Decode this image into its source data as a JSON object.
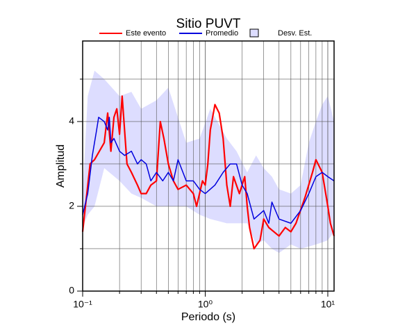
{
  "chart_data": {
    "type": "line",
    "title": "Sitio PUVT",
    "x_label": "Periodo (s)",
    "y_label": "Amplitud",
    "xlog": true,
    "grid": true,
    "xlim": [
      0.1,
      11.25
    ],
    "ylim": [
      0,
      5.9
    ],
    "xticks": [
      {
        "value": 0.1,
        "label": "10⁻¹"
      },
      {
        "value": 1,
        "label": "10⁰"
      },
      {
        "value": 10,
        "label": "10¹"
      }
    ],
    "xminor": [
      0.2,
      0.3,
      0.4,
      0.5,
      0.6,
      0.7,
      0.8,
      0.9,
      2,
      3,
      4,
      5,
      6,
      7,
      8,
      9
    ],
    "yticks": [
      0,
      2,
      4
    ],
    "yminor": [
      1,
      3,
      5
    ],
    "series": [
      {
        "name": "Este evento",
        "color": "#ff0000",
        "x": [
          0.1,
          0.115,
          0.125,
          0.15,
          0.16,
          0.17,
          0.18,
          0.19,
          0.2,
          0.21,
          0.23,
          0.25,
          0.28,
          0.3,
          0.33,
          0.36,
          0.4,
          0.43,
          0.46,
          0.5,
          0.55,
          0.6,
          0.7,
          0.8,
          0.85,
          0.95,
          1.0,
          1.05,
          1.1,
          1.2,
          1.3,
          1.4,
          1.5,
          1.6,
          1.7,
          1.9,
          2.1,
          2.2,
          2.3,
          2.5,
          2.8,
          3.0,
          3.3,
          4.0,
          4.5,
          5,
          5.5,
          6.5,
          7.5,
          8,
          9,
          10,
          10.5,
          11.25
        ],
        "values": [
          1.4,
          3.0,
          3.1,
          3.5,
          4.2,
          3.3,
          4.1,
          4.3,
          3.7,
          4.6,
          3.0,
          2.8,
          2.5,
          2.3,
          2.3,
          2.5,
          2.6,
          4.0,
          3.6,
          3.0,
          2.6,
          2.4,
          2.5,
          2.3,
          2.0,
          2.6,
          2.5,
          3.0,
          3.8,
          4.4,
          4.2,
          3.6,
          2.5,
          2.0,
          2.7,
          2.3,
          2.7,
          2.0,
          1.5,
          1.0,
          1.2,
          1.7,
          1.5,
          1.3,
          1.5,
          1.4,
          1.6,
          2.2,
          2.8,
          3.1,
          2.8,
          2.0,
          1.6,
          1.3
        ]
      },
      {
        "name": "Promedio",
        "color": "#0000dd",
        "x": [
          0.1,
          0.11,
          0.12,
          0.13,
          0.135,
          0.15,
          0.16,
          0.165,
          0.17,
          0.18,
          0.2,
          0.22,
          0.25,
          0.28,
          0.3,
          0.33,
          0.36,
          0.4,
          0.45,
          0.5,
          0.55,
          0.6,
          0.7,
          0.8,
          0.9,
          1.0,
          1.2,
          1.4,
          1.6,
          1.8,
          2.0,
          2.2,
          2.5,
          3.0,
          3.3,
          3.5,
          4.0,
          5,
          6,
          7,
          8,
          9,
          10,
          11.25
        ],
        "values": [
          1.8,
          2.3,
          3.2,
          3.8,
          4.1,
          4.0,
          3.8,
          4.1,
          3.5,
          3.6,
          3.3,
          3.2,
          3.3,
          3.0,
          3.1,
          3.0,
          2.6,
          2.8,
          2.6,
          2.8,
          2.6,
          3.1,
          2.6,
          2.6,
          2.4,
          2.3,
          2.5,
          2.8,
          3.0,
          3.0,
          2.5,
          2.3,
          1.7,
          1.9,
          1.6,
          2.1,
          1.7,
          1.6,
          1.9,
          2.3,
          2.7,
          2.8,
          2.7,
          2.6
        ]
      },
      {
        "name": "Desv. Est.",
        "color": "#ddddff",
        "band": true,
        "x": [
          0.1,
          0.11,
          0.125,
          0.15,
          0.2,
          0.25,
          0.3,
          0.4,
          0.5,
          0.7,
          0.9,
          1.1,
          1.5,
          1.8,
          2.2,
          2.6,
          3,
          3.5,
          4,
          5,
          6,
          7,
          8,
          9,
          10,
          11.25
        ],
        "upper": [
          2.3,
          4.6,
          5.2,
          5.0,
          4.6,
          4.7,
          4.3,
          4.5,
          4.8,
          3.5,
          3.6,
          4.3,
          3.6,
          3.3,
          2.8,
          3.2,
          2.9,
          2.7,
          2.4,
          2.3,
          2.5,
          3.5,
          4.0,
          4.4,
          4.6,
          4.0
        ],
        "lower": [
          1.5,
          1.8,
          2.0,
          2.9,
          2.6,
          2.3,
          2.2,
          2.0,
          2.0,
          2.0,
          1.8,
          1.7,
          1.6,
          1.6,
          1.6,
          1.1,
          1.2,
          1.0,
          0.9,
          1.1,
          1.0,
          1.05,
          1.1,
          1.15,
          1.2,
          1.4
        ]
      }
    ]
  }
}
